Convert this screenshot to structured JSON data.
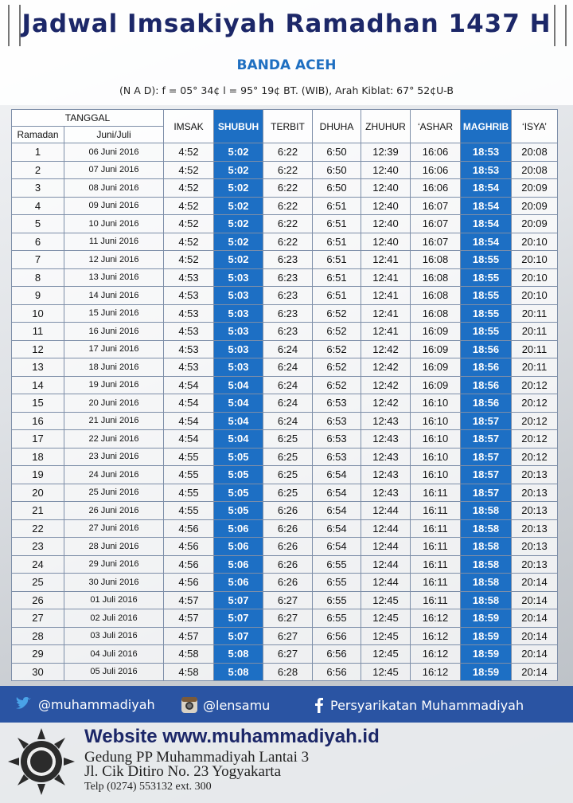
{
  "header": {
    "title": "Jadwal Imsakiyah Ramadhan 1437 H",
    "location": "BANDA ACEH",
    "coordinates": "(N A D): f = 05° 34¢  l = 95° 19¢  BT. (WIB), Arah Kiblat: 67° 52¢U-B"
  },
  "table": {
    "group_header": "TANGGAL",
    "columns": [
      "Ramadan",
      "Juni/Juli",
      "IMSAK",
      "SHUBUH",
      "TERBIT",
      "DHUHA",
      "ZHUHUR",
      "‘ASHAR",
      "MAGHRIB",
      "‘ISYA’"
    ],
    "rows": [
      [
        1,
        "06 Juni 2016",
        "4:52",
        "5:02",
        "6:22",
        "6:50",
        "12:39",
        "16:06",
        "18:53",
        "20:08"
      ],
      [
        2,
        "07 Juni 2016",
        "4:52",
        "5:02",
        "6:22",
        "6:50",
        "12:40",
        "16:06",
        "18:53",
        "20:08"
      ],
      [
        3,
        "08 Juni 2016",
        "4:52",
        "5:02",
        "6:22",
        "6:50",
        "12:40",
        "16:06",
        "18:54",
        "20:09"
      ],
      [
        4,
        "09 Juni 2016",
        "4:52",
        "5:02",
        "6:22",
        "6:51",
        "12:40",
        "16:07",
        "18:54",
        "20:09"
      ],
      [
        5,
        "10 Juni 2016",
        "4:52",
        "5:02",
        "6:22",
        "6:51",
        "12:40",
        "16:07",
        "18:54",
        "20:09"
      ],
      [
        6,
        "11 Juni 2016",
        "4:52",
        "5:02",
        "6:22",
        "6:51",
        "12:40",
        "16:07",
        "18:54",
        "20:10"
      ],
      [
        7,
        "12 Juni 2016",
        "4:52",
        "5:02",
        "6:23",
        "6:51",
        "12:41",
        "16:08",
        "18:55",
        "20:10"
      ],
      [
        8,
        "13 Juni 2016",
        "4:53",
        "5:03",
        "6:23",
        "6:51",
        "12:41",
        "16:08",
        "18:55",
        "20:10"
      ],
      [
        9,
        "14 Juni 2016",
        "4:53",
        "5:03",
        "6:23",
        "6:51",
        "12:41",
        "16:08",
        "18:55",
        "20:10"
      ],
      [
        10,
        "15 Juni 2016",
        "4:53",
        "5:03",
        "6:23",
        "6:52",
        "12:41",
        "16:08",
        "18:55",
        "20:11"
      ],
      [
        11,
        "16 Juni 2016",
        "4:53",
        "5:03",
        "6:23",
        "6:52",
        "12:41",
        "16:09",
        "18:55",
        "20:11"
      ],
      [
        12,
        "17 Juni 2016",
        "4:53",
        "5:03",
        "6:24",
        "6:52",
        "12:42",
        "16:09",
        "18:56",
        "20:11"
      ],
      [
        13,
        "18 Juni 2016",
        "4:53",
        "5:03",
        "6:24",
        "6:52",
        "12:42",
        "16:09",
        "18:56",
        "20:11"
      ],
      [
        14,
        "19 Juni 2016",
        "4:54",
        "5:04",
        "6:24",
        "6:52",
        "12:42",
        "16:09",
        "18:56",
        "20:12"
      ],
      [
        15,
        "20 Juni 2016",
        "4:54",
        "5:04",
        "6:24",
        "6:53",
        "12:42",
        "16:10",
        "18:56",
        "20:12"
      ],
      [
        16,
        "21 Juni 2016",
        "4:54",
        "5:04",
        "6:24",
        "6:53",
        "12:43",
        "16:10",
        "18:57",
        "20:12"
      ],
      [
        17,
        "22 Juni 2016",
        "4:54",
        "5:04",
        "6:25",
        "6:53",
        "12:43",
        "16:10",
        "18:57",
        "20:12"
      ],
      [
        18,
        "23 Juni 2016",
        "4:55",
        "5:05",
        "6:25",
        "6:53",
        "12:43",
        "16:10",
        "18:57",
        "20:12"
      ],
      [
        19,
        "24 Juni 2016",
        "4:55",
        "5:05",
        "6:25",
        "6:54",
        "12:43",
        "16:10",
        "18:57",
        "20:13"
      ],
      [
        20,
        "25 Juni 2016",
        "4:55",
        "5:05",
        "6:25",
        "6:54",
        "12:43",
        "16:11",
        "18:57",
        "20:13"
      ],
      [
        21,
        "26 Juni 2016",
        "4:55",
        "5:05",
        "6:26",
        "6:54",
        "12:44",
        "16:11",
        "18:58",
        "20:13"
      ],
      [
        22,
        "27 Juni 2016",
        "4:56",
        "5:06",
        "6:26",
        "6:54",
        "12:44",
        "16:11",
        "18:58",
        "20:13"
      ],
      [
        23,
        "28 Juni 2016",
        "4:56",
        "5:06",
        "6:26",
        "6:54",
        "12:44",
        "16:11",
        "18:58",
        "20:13"
      ],
      [
        24,
        "29 Juni 2016",
        "4:56",
        "5:06",
        "6:26",
        "6:55",
        "12:44",
        "16:11",
        "18:58",
        "20:13"
      ],
      [
        25,
        "30 Juni 2016",
        "4:56",
        "5:06",
        "6:26",
        "6:55",
        "12:44",
        "16:11",
        "18:58",
        "20:14"
      ],
      [
        26,
        "01 Juli 2016",
        "4:57",
        "5:07",
        "6:27",
        "6:55",
        "12:45",
        "16:11",
        "18:58",
        "20:14"
      ],
      [
        27,
        "02 Juli 2016",
        "4:57",
        "5:07",
        "6:27",
        "6:55",
        "12:45",
        "16:12",
        "18:59",
        "20:14"
      ],
      [
        28,
        "03 Juli 2016",
        "4:57",
        "5:07",
        "6:27",
        "6:56",
        "12:45",
        "16:12",
        "18:59",
        "20:14"
      ],
      [
        29,
        "04 Juli 2016",
        "4:58",
        "5:08",
        "6:27",
        "6:56",
        "12:45",
        "16:12",
        "18:59",
        "20:14"
      ],
      [
        30,
        "05 Juli 2016",
        "4:58",
        "5:08",
        "6:28",
        "6:56",
        "12:45",
        "16:12",
        "18:59",
        "20:14"
      ]
    ]
  },
  "footer": {
    "twitter": "@muhammadiyah",
    "instagram": "@lensamu",
    "facebook": "Persyarikatan Muhammadiyah",
    "website": "Website www.muhammadiyah.id",
    "address": [
      "Gedung PP Muhammadiyah Lantai 3",
      "Jl. Cik Ditiro No. 23 Yogyakarta",
      "Telp (0274) 553132 ext. 300"
    ]
  }
}
